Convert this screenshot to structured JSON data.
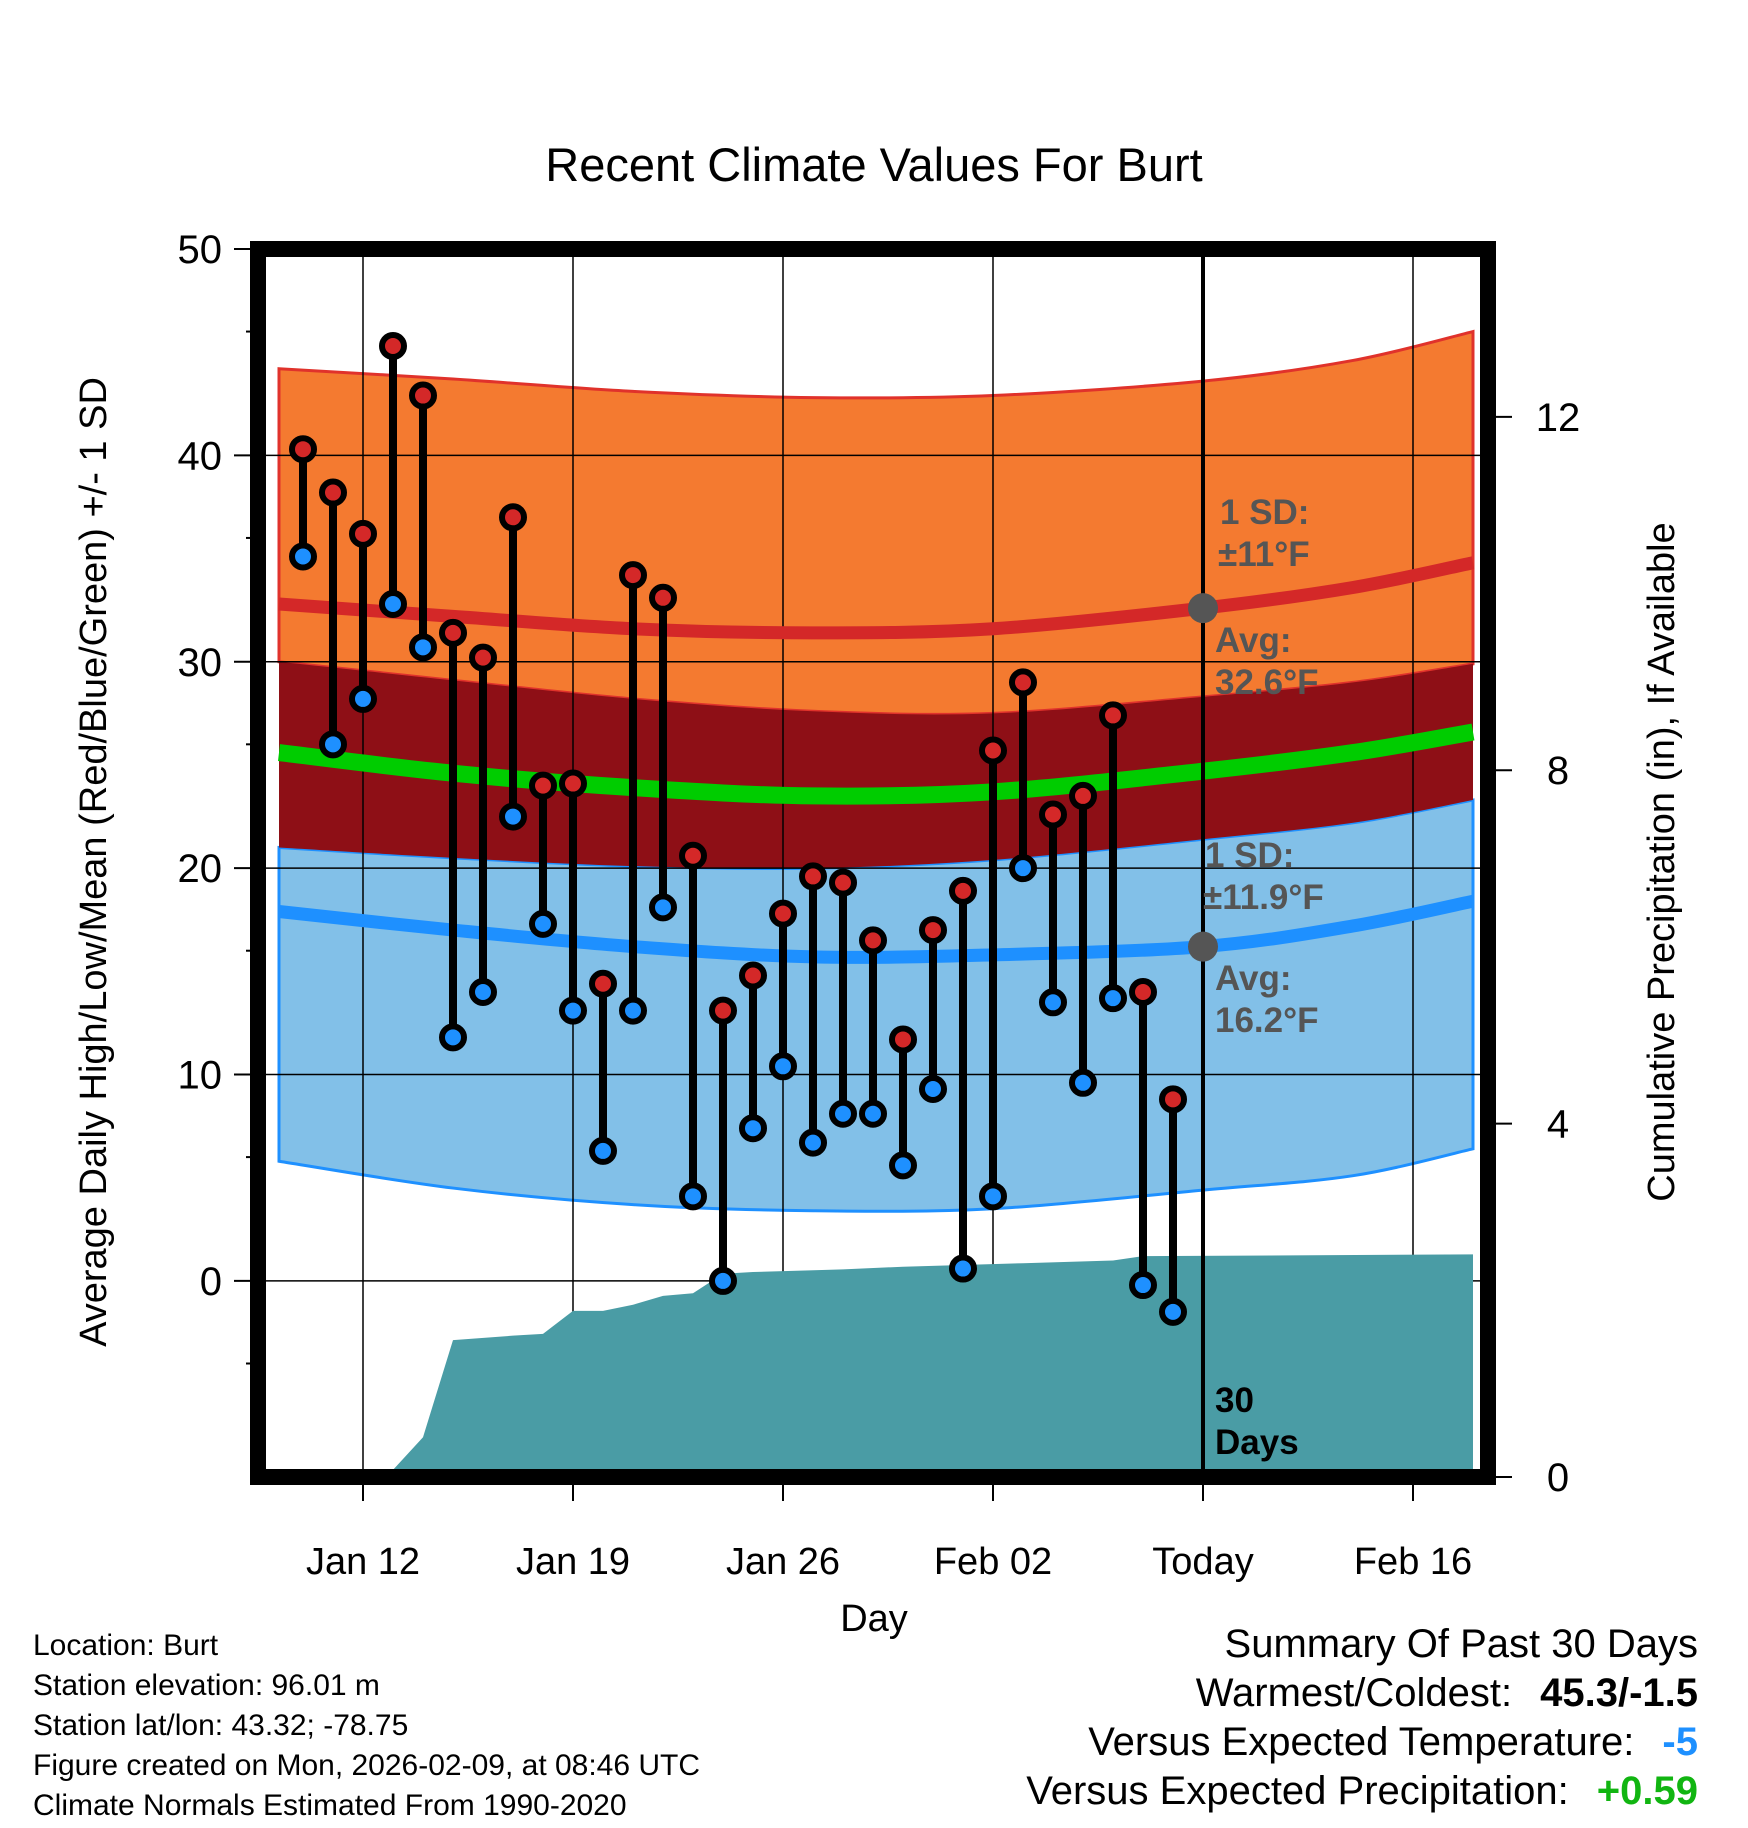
{
  "chart_data": {
    "type": "line",
    "title": "Recent Climate Values For Burt",
    "xlabel": "Day",
    "ylabel": "Average Daily High/Low/Mean (Red/Blue/Green) +/- 1 SD",
    "y2label": "Cumulative Precipitation (in), If Available",
    "xlim": [
      -3.5,
      37.5
    ],
    "ylim": [
      -9.5,
      50
    ],
    "y2lim": [
      0,
      13.9
    ],
    "yticks": [
      0,
      10,
      20,
      30,
      40,
      50
    ],
    "y2ticks": [
      0,
      4,
      8,
      12
    ],
    "xticks": [
      {
        "day": 0,
        "label": "Jan 12"
      },
      {
        "day": 7,
        "label": "Jan 19"
      },
      {
        "day": 14,
        "label": "Jan 26"
      },
      {
        "day": 21,
        "label": "Feb 02"
      },
      {
        "day": 28,
        "label": "Today"
      },
      {
        "day": 35,
        "label": "Feb 16"
      }
    ],
    "today_day": 28,
    "days_label": "30 Days",
    "normal_band_days": [
      -2.8,
      3,
      9,
      15,
      21,
      28,
      33,
      37
    ],
    "normal_high": {
      "mean": [
        32.8,
        32.2,
        31.6,
        31.4,
        31.6,
        32.6,
        33.6,
        34.8
      ],
      "upper": [
        44.2,
        43.7,
        43.1,
        42.8,
        42.9,
        43.6,
        44.6,
        46.0
      ],
      "lower": [
        30.0,
        29.1,
        28.2,
        27.6,
        27.5,
        28.3,
        29.0,
        29.9
      ]
    },
    "normal_mean": [
      25.6,
      24.6,
      23.9,
      23.5,
      23.7,
      24.7,
      25.6,
      26.6
    ],
    "normal_low": {
      "mean": [
        17.9,
        17.0,
        16.2,
        15.7,
        15.8,
        16.2,
        17.2,
        18.4
      ],
      "upper": [
        21.0,
        20.5,
        20.1,
        20.0,
        20.4,
        21.4,
        22.2,
        23.3
      ],
      "lower": [
        5.8,
        4.5,
        3.7,
        3.4,
        3.5,
        4.4,
        5.1,
        6.4
      ]
    },
    "high_sd_label": "1 SD:",
    "high_sd_value": "±11°F",
    "high_avg_label": "Avg:",
    "high_avg_value": "32.6°F",
    "low_sd_label": "1 SD:",
    "low_sd_value": "±11.9°F",
    "low_avg_label": "Avg:",
    "low_avg_value": "16.2°F",
    "series": [
      {
        "name": "Daily High",
        "color": "#d42828",
        "days": [
          -2,
          -1,
          0,
          1,
          2,
          3,
          4,
          5,
          6,
          7,
          8,
          9,
          10,
          11,
          12,
          13,
          14,
          15,
          16,
          17,
          18,
          19,
          20,
          21,
          22,
          23,
          24,
          25,
          26,
          27
        ],
        "values": [
          40.3,
          38.2,
          36.2,
          45.3,
          42.9,
          31.4,
          30.2,
          37.0,
          24.0,
          24.1,
          14.4,
          34.2,
          33.1,
          20.6,
          13.1,
          14.8,
          17.8,
          19.6,
          19.3,
          16.5,
          11.7,
          17.0,
          18.9,
          25.7,
          29.0,
          22.6,
          23.5,
          27.4,
          14.0,
          8.8
        ]
      },
      {
        "name": "Daily Low",
        "color": "#1e90ff",
        "days": [
          -2,
          -1,
          0,
          1,
          2,
          3,
          4,
          5,
          6,
          7,
          8,
          9,
          10,
          11,
          12,
          13,
          14,
          15,
          16,
          17,
          18,
          19,
          20,
          21,
          22,
          23,
          24,
          25,
          26,
          27
        ],
        "values": [
          35.1,
          26.0,
          28.2,
          32.8,
          30.7,
          11.8,
          14.0,
          22.5,
          17.3,
          13.1,
          6.3,
          13.1,
          18.1,
          4.1,
          0.0,
          7.4,
          10.4,
          6.7,
          8.1,
          8.1,
          5.6,
          9.3,
          0.6,
          4.1,
          20.0,
          13.5,
          9.6,
          13.7,
          -0.2,
          -1.5
        ]
      },
      {
        "name": "Cumulative Precipitation",
        "color": "#4a9ca5",
        "days": [
          -3,
          0,
          1,
          2,
          3,
          5,
          6,
          7,
          8,
          9,
          10,
          11,
          12,
          13,
          16,
          18,
          22,
          25,
          26,
          37
        ],
        "values": [
          0.0,
          0.02,
          0.08,
          0.45,
          1.55,
          1.6,
          1.62,
          1.88,
          1.88,
          1.95,
          2.05,
          2.08,
          2.3,
          2.32,
          2.35,
          2.38,
          2.42,
          2.45,
          2.5,
          2.52
        ]
      }
    ]
  },
  "footer": {
    "location": "Location: Burt",
    "elevation": "Station elevation: 96.01 m",
    "latlon": "Station lat/lon: 43.32; -78.75",
    "created": "Figure created on Mon, 2026-02-09, at 08:46 UTC",
    "normals": "Climate Normals Estimated From 1990-2020"
  },
  "summary": {
    "title": "Summary Of Past 30 Days",
    "warmest_label": "Warmest/Coldest:",
    "warmest_value": "45.3/-1.5",
    "temp_label": "Versus Expected Temperature:",
    "temp_value": "-5",
    "precip_label": "Versus Expected Precipitation:",
    "precip_value": "+0.59",
    "temp_color": "#1e90ff",
    "precip_color": "#11b511"
  }
}
